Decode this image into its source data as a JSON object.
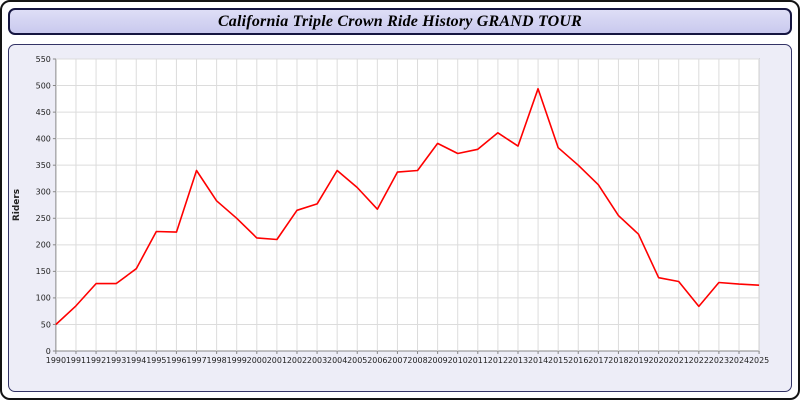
{
  "title_bar": {
    "text": "California Triple Crown Ride History GRAND TOUR"
  },
  "colors": {
    "title_bar": "#c9c9ee",
    "title_border": "#151540",
    "panel_bg": "#ededf7",
    "panel_border": "#333366",
    "line": "#ff0000",
    "grid": "#dcdcdc",
    "plot_border": "#888888",
    "text": "#222222"
  },
  "chart_data": {
    "type": "line",
    "title": "California Triple Crown Ride History GRAND TOUR",
    "xlabel": "",
    "ylabel": "Riders",
    "x": [
      1990,
      1991,
      1992,
      1993,
      1994,
      1995,
      1996,
      1997,
      1998,
      1999,
      2000,
      2001,
      2002,
      2003,
      2004,
      2005,
      2006,
      2007,
      2008,
      2009,
      2010,
      2011,
      2012,
      2013,
      2014,
      2015,
      2016,
      2017,
      2018,
      2019,
      2020,
      2021,
      2022,
      2023,
      2024,
      2025
    ],
    "values": [
      50,
      85,
      127,
      127,
      155,
      225,
      224,
      340,
      283,
      250,
      213,
      210,
      265,
      277,
      340,
      308,
      267,
      337,
      340,
      391,
      372,
      380,
      411,
      386,
      494,
      383,
      350,
      313,
      255,
      220,
      138,
      131,
      84,
      129,
      126,
      124
    ],
    "ylim": [
      0,
      550
    ],
    "ytick_step": 50,
    "grid": true,
    "legend": "none",
    "line_color": "#ff0000"
  }
}
